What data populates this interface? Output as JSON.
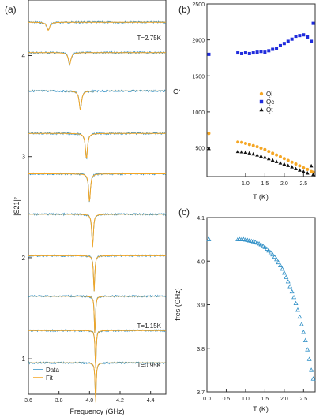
{
  "chart_data": [
    {
      "panel_label": "(a)",
      "type": "line",
      "xlabel": "Frequency (GHz)",
      "ylabel": "|S21|²",
      "xlim": [
        3.6,
        4.5
      ],
      "xticks": [
        "3.6",
        "3.8",
        "4.0",
        "4.2",
        "4.4"
      ],
      "yticks": [
        "1",
        "2",
        "3",
        "4"
      ],
      "temperature_labels": {
        "top": "T=2.75K",
        "second_lowest": "T=1.15K",
        "lowest": "T=0.95K"
      },
      "legend": [
        "Data",
        "Fit"
      ],
      "legend_position": "bottom-left",
      "colors": {
        "data": "#2f8fc6",
        "fit": "#f5a623"
      },
      "traces": [
        {
          "center": 3.73,
          "depth": 0.025,
          "width": 0.011,
          "baseline": 4.33
        },
        {
          "center": 3.87,
          "depth": 0.035,
          "width": 0.01,
          "baseline": 4.03
        },
        {
          "center": 3.94,
          "depth": 0.055,
          "width": 0.009,
          "baseline": 3.65
        },
        {
          "center": 3.98,
          "depth": 0.07,
          "width": 0.008,
          "baseline": 3.23
        },
        {
          "center": 4.0,
          "depth": 0.075,
          "width": 0.007,
          "baseline": 2.83
        },
        {
          "center": 4.02,
          "depth": 0.085,
          "width": 0.006,
          "baseline": 2.43
        },
        {
          "center": 4.03,
          "depth": 0.09,
          "width": 0.005,
          "baseline": 2.02
        },
        {
          "center": 4.035,
          "depth": 0.093,
          "width": 0.0045,
          "baseline": 1.62
        },
        {
          "center": 4.04,
          "depth": 0.095,
          "width": 0.004,
          "baseline": 1.28
        },
        {
          "center": 4.04,
          "depth": 0.096,
          "width": 0.004,
          "baseline": 0.96
        }
      ]
    },
    {
      "panel_label": "(b)",
      "type": "scatter",
      "xlabel": "T (K)",
      "ylabel": "Q",
      "xlim": [
        0,
        2.8
      ],
      "ylim": [
        100,
        2500
      ],
      "xticks": [
        "1.0",
        "1.5",
        "2.0",
        "2.5"
      ],
      "yticks": [
        "500",
        "1000",
        "1500",
        "2000",
        "2500"
      ],
      "legend_position": "center-right",
      "series": [
        {
          "name": "Qi",
          "marker": "circle",
          "color": "#f5a623",
          "x": [
            0.05,
            0.8,
            0.9,
            1.0,
            1.1,
            1.2,
            1.3,
            1.4,
            1.5,
            1.6,
            1.7,
            1.8,
            1.9,
            2.0,
            2.1,
            2.2,
            2.3,
            2.4,
            2.5,
            2.6,
            2.7,
            2.75
          ],
          "y": [
            700,
            580,
            575,
            560,
            545,
            530,
            515,
            495,
            475,
            450,
            425,
            400,
            375,
            350,
            325,
            300,
            275,
            250,
            220,
            200,
            170,
            160
          ]
        },
        {
          "name": "Qc",
          "marker": "square",
          "color": "#1f2bdc",
          "x": [
            0.05,
            0.8,
            0.9,
            1.0,
            1.1,
            1.2,
            1.3,
            1.4,
            1.5,
            1.6,
            1.7,
            1.8,
            1.9,
            2.0,
            2.1,
            2.2,
            2.3,
            2.4,
            2.5,
            2.6,
            2.7,
            2.75
          ],
          "y": [
            1800,
            1820,
            1810,
            1820,
            1810,
            1820,
            1830,
            1840,
            1830,
            1850,
            1870,
            1880,
            1920,
            1950,
            1980,
            2010,
            2050,
            2060,
            2070,
            2040,
            1980,
            2230
          ]
        },
        {
          "name": "Qt",
          "marker": "triangle",
          "color": "#111111",
          "x": [
            0.05,
            0.8,
            0.9,
            1.0,
            1.1,
            1.2,
            1.3,
            1.4,
            1.5,
            1.6,
            1.7,
            1.8,
            1.9,
            2.0,
            2.1,
            2.2,
            2.3,
            2.4,
            2.5,
            2.6,
            2.7,
            2.75
          ],
          "y": [
            490,
            450,
            445,
            440,
            430,
            415,
            400,
            385,
            370,
            350,
            330,
            310,
            290,
            275,
            255,
            235,
            210,
            190,
            170,
            150,
            250,
            130
          ]
        }
      ]
    },
    {
      "panel_label": "(c)",
      "type": "scatter",
      "xlabel": "T (K)",
      "ylabel": "fres (GHz)",
      "xlim": [
        0,
        2.8
      ],
      "ylim": [
        3.7,
        4.1
      ],
      "xticks": [
        "0.0",
        "0.5",
        "1.0",
        "1.5",
        "2.0",
        "2.5"
      ],
      "yticks": [
        "3.7",
        "3.8",
        "3.9",
        "4.0",
        "4.1"
      ],
      "series": [
        {
          "name": "",
          "marker": "open-triangle",
          "color": "#2f8fc6",
          "x": [
            0.05,
            0.8,
            0.85,
            0.9,
            0.95,
            1.0,
            1.05,
            1.1,
            1.15,
            1.2,
            1.25,
            1.3,
            1.35,
            1.4,
            1.45,
            1.5,
            1.55,
            1.6,
            1.65,
            1.7,
            1.75,
            1.8,
            1.85,
            1.9,
            1.95,
            2.0,
            2.05,
            2.1,
            2.15,
            2.2,
            2.25,
            2.3,
            2.35,
            2.4,
            2.45,
            2.5,
            2.55,
            2.6,
            2.65,
            2.7,
            2.75
          ],
          "y": [
            4.05,
            4.05,
            4.05,
            4.05,
            4.05,
            4.049,
            4.048,
            4.047,
            4.046,
            4.045,
            4.044,
            4.042,
            4.04,
            4.038,
            4.035,
            4.032,
            4.028,
            4.024,
            4.02,
            4.015,
            4.01,
            4.004,
            3.997,
            3.99,
            3.982,
            3.973,
            3.963,
            3.953,
            3.942,
            3.93,
            3.917,
            3.903,
            3.888,
            3.872,
            3.855,
            3.837,
            3.818,
            3.797,
            3.775,
            3.75,
            3.73
          ]
        }
      ]
    }
  ]
}
